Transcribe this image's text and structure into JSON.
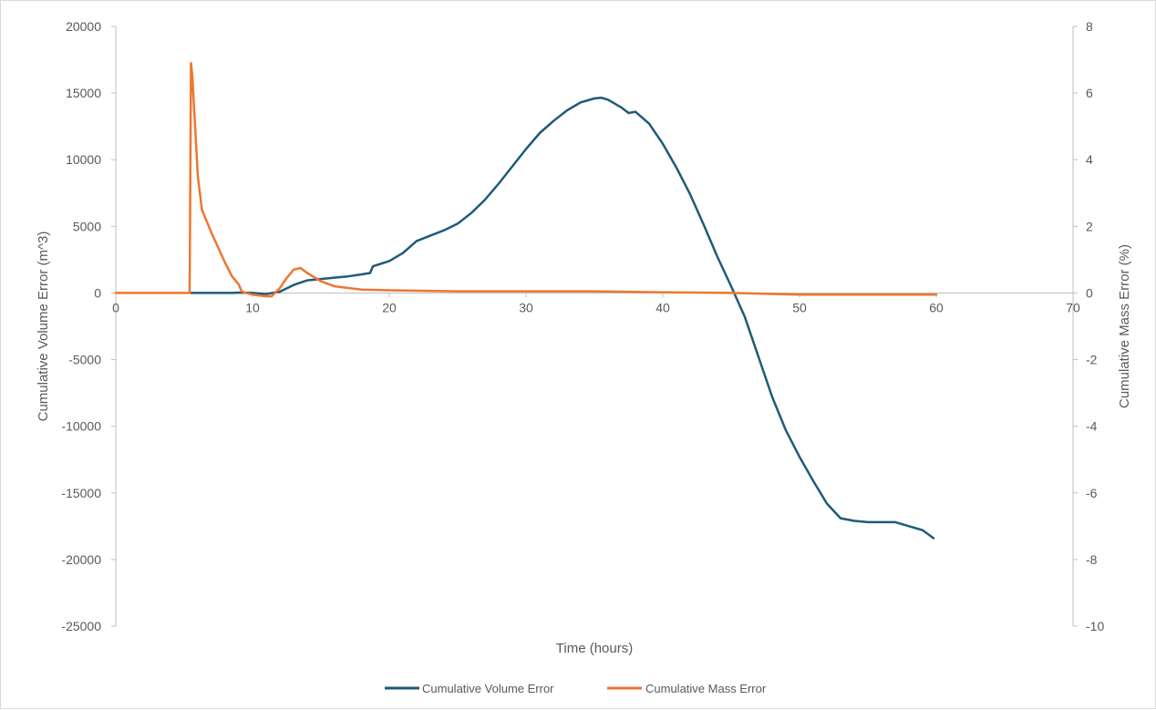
{
  "chart_data": {
    "type": "line",
    "title": "",
    "xlabel": "Time (hours)",
    "ylabel": "Cumulative Volume Error (m^3)",
    "y2label": "Cumulative Mass Error (%)",
    "xlim": [
      0,
      70
    ],
    "ylim": [
      -25000,
      20000
    ],
    "y2lim": [
      -10,
      8
    ],
    "x_ticks": [
      0,
      10,
      20,
      30,
      40,
      50,
      60,
      70
    ],
    "y_ticks": [
      20000,
      15000,
      10000,
      5000,
      0,
      -5000,
      -10000,
      -15000,
      -20000,
      -25000
    ],
    "y2_ticks": [
      8,
      6,
      4,
      2,
      0,
      -2,
      -4,
      -6,
      -8,
      -10
    ],
    "grid": false,
    "legend_position": "bottom",
    "series": [
      {
        "name": "Cumulative Volume Error",
        "axis": "left",
        "color": "#1f5a7a",
        "points": [
          [
            5.5,
            0
          ],
          [
            8.5,
            0
          ],
          [
            9.0,
            30
          ],
          [
            10,
            0
          ],
          [
            11,
            -80
          ],
          [
            12,
            100
          ],
          [
            13,
            600
          ],
          [
            14,
            950
          ],
          [
            15,
            1050
          ],
          [
            16,
            1150
          ],
          [
            17,
            1250
          ],
          [
            18,
            1400
          ],
          [
            18.6,
            1500
          ],
          [
            18.8,
            2000
          ],
          [
            20,
            2400
          ],
          [
            21,
            3000
          ],
          [
            22,
            3900
          ],
          [
            23,
            4300
          ],
          [
            24,
            4700
          ],
          [
            25,
            5200
          ],
          [
            26,
            6000
          ],
          [
            27,
            7000
          ],
          [
            28,
            8200
          ],
          [
            29,
            9500
          ],
          [
            30,
            10800
          ],
          [
            31,
            12000
          ],
          [
            32,
            12900
          ],
          [
            33,
            13700
          ],
          [
            34,
            14300
          ],
          [
            35,
            14600
          ],
          [
            35.5,
            14650
          ],
          [
            36,
            14500
          ],
          [
            37,
            13900
          ],
          [
            37.5,
            13500
          ],
          [
            38,
            13600
          ],
          [
            39,
            12700
          ],
          [
            40,
            11200
          ],
          [
            41,
            9400
          ],
          [
            42,
            7400
          ],
          [
            43,
            5100
          ],
          [
            44,
            2700
          ],
          [
            45,
            500
          ],
          [
            46,
            -1800
          ],
          [
            47,
            -4800
          ],
          [
            48,
            -7800
          ],
          [
            49,
            -10300
          ],
          [
            50,
            -12300
          ],
          [
            51,
            -14100
          ],
          [
            52,
            -15800
          ],
          [
            53,
            -16900
          ],
          [
            54,
            -17100
          ],
          [
            55,
            -17200
          ],
          [
            56,
            -17200
          ],
          [
            57,
            -17200
          ],
          [
            58,
            -17500
          ],
          [
            59,
            -17800
          ],
          [
            59.8,
            -18400
          ]
        ]
      },
      {
        "name": "Cumulative Mass Error",
        "axis": "right",
        "color": "#ee7631",
        "points": [
          [
            0,
            0
          ],
          [
            5.4,
            0
          ],
          [
            5.5,
            6.9
          ],
          [
            5.6,
            6.5
          ],
          [
            6,
            3.5
          ],
          [
            6.3,
            2.5
          ],
          [
            7,
            1.8
          ],
          [
            8,
            0.9
          ],
          [
            8.5,
            0.5
          ],
          [
            9,
            0.25
          ],
          [
            9.2,
            0.05
          ],
          [
            9.5,
            0
          ],
          [
            10,
            -0.05
          ],
          [
            11,
            -0.1
          ],
          [
            11.4,
            -0.1
          ],
          [
            12,
            0.15
          ],
          [
            12.5,
            0.45
          ],
          [
            13,
            0.7
          ],
          [
            13.5,
            0.75
          ],
          [
            14,
            0.6
          ],
          [
            15,
            0.35
          ],
          [
            16,
            0.2
          ],
          [
            17,
            0.15
          ],
          [
            18,
            0.1
          ],
          [
            20,
            0.08
          ],
          [
            25,
            0.05
          ],
          [
            30,
            0.05
          ],
          [
            35,
            0.05
          ],
          [
            40,
            0.02
          ],
          [
            45,
            0
          ],
          [
            50,
            -0.05
          ],
          [
            55,
            -0.05
          ],
          [
            60,
            -0.05
          ]
        ]
      }
    ]
  }
}
